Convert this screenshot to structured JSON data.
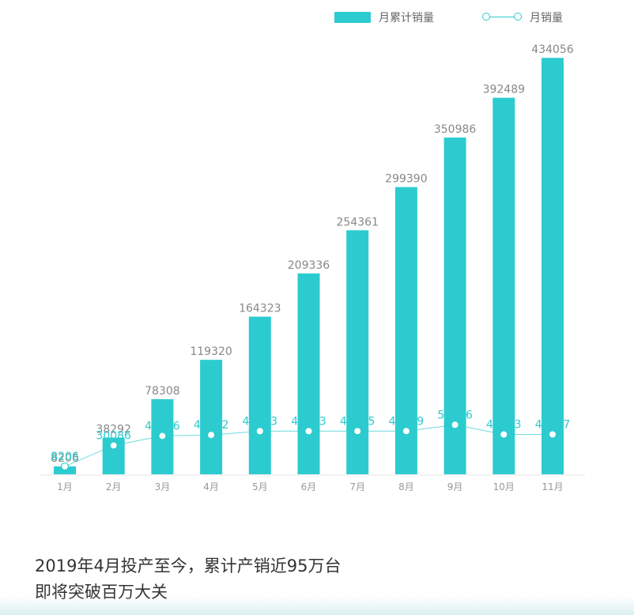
{
  "legend": {
    "bar_label": "月累计销量",
    "line_label": "月销量"
  },
  "caption": {
    "line1": "2019年4月投产至今，累计产销近95万台",
    "line2": "即将突破百万大关"
  },
  "colors": {
    "bar": "#2ccbcf",
    "line": "#2ccbcf",
    "bar_label": "#888888",
    "line_label": "#2ccbcf"
  },
  "chart_data": {
    "type": "bar",
    "categories": [
      "1月",
      "2月",
      "3月",
      "4月",
      "5月",
      "6月",
      "7月",
      "8月",
      "9月",
      "10月",
      "11月"
    ],
    "series": [
      {
        "name": "月累计销量",
        "type": "bar",
        "values": [
          8206,
          38292,
          78308,
          119320,
          164323,
          209336,
          254361,
          299390,
          350986,
          392489,
          434056
        ]
      },
      {
        "name": "月销量",
        "type": "line",
        "values": [
          8206,
          30086,
          40016,
          41012,
          45003,
          45013,
          45025,
          45029,
          51596,
          41503,
          41567
        ]
      }
    ],
    "ylim": [
      0,
      440000
    ],
    "legend_position": "top-right",
    "grid": false
  }
}
